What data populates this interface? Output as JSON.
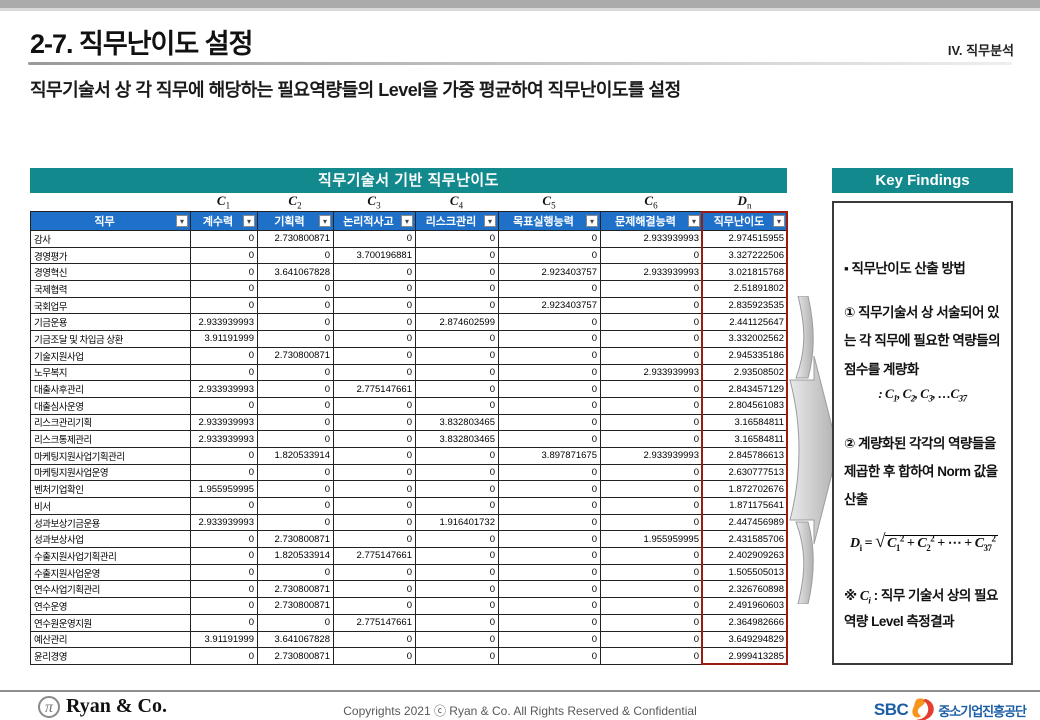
{
  "header": {
    "title": "2-7. 직무난이도 설정",
    "section": "IV. 직무분석",
    "subtitle": "직무기술서 상 각 직무에 해당하는 필요역량들의 Level을 가중 평균하여 직무난이도를 설정"
  },
  "colors": {
    "teal": "#12898d",
    "header_blue": "#1f70c9",
    "highlight_red": "#9b1b10"
  },
  "table": {
    "title": "직무기술서 기반 직무난이도",
    "symbols": [
      {
        "base": "C",
        "sub": "1"
      },
      {
        "base": "C",
        "sub": "2"
      },
      {
        "base": "C",
        "sub": "3"
      },
      {
        "base": "C",
        "sub": "4"
      },
      {
        "base": "C",
        "sub": "5"
      },
      {
        "base": "C",
        "sub": "6"
      },
      {
        "base": "D",
        "sub": "n"
      }
    ],
    "columns": [
      "직무",
      "계수력",
      "기획력",
      "논리적사고",
      "리스크관리",
      "목표실행능력",
      "문제해결능력",
      "직무난이도"
    ],
    "rows": [
      {
        "label": "감사",
        "values": [
          "0",
          "2.730800871",
          "0",
          "0",
          "0",
          "2.933939993",
          "2.974515955"
        ]
      },
      {
        "label": "경영평가",
        "values": [
          "0",
          "0",
          "3.700196881",
          "0",
          "0",
          "0",
          "3.327222506"
        ]
      },
      {
        "label": "경영혁신",
        "values": [
          "0",
          "3.641067828",
          "0",
          "0",
          "2.923403757",
          "2.933939993",
          "3.021815768"
        ]
      },
      {
        "label": "국제협력",
        "values": [
          "0",
          "0",
          "0",
          "0",
          "0",
          "0",
          "2.51891802"
        ]
      },
      {
        "label": "국회업무",
        "values": [
          "0",
          "0",
          "0",
          "0",
          "2.923403757",
          "0",
          "2.835923535"
        ]
      },
      {
        "label": "기금운용",
        "values": [
          "2.933939993",
          "0",
          "0",
          "2.874602599",
          "0",
          "0",
          "2.441125647"
        ]
      },
      {
        "label": "기금조달 및 차입금 상환",
        "values": [
          "3.91191999",
          "0",
          "0",
          "0",
          "0",
          "0",
          "3.332002562"
        ]
      },
      {
        "label": "기술지원사업",
        "values": [
          "0",
          "2.730800871",
          "0",
          "0",
          "0",
          "0",
          "2.945335186"
        ]
      },
      {
        "label": "노무복지",
        "values": [
          "0",
          "0",
          "0",
          "0",
          "0",
          "2.933939993",
          "2.93508502"
        ]
      },
      {
        "label": "대출사후관리",
        "values": [
          "2.933939993",
          "0",
          "2.775147661",
          "0",
          "0",
          "0",
          "2.843457129"
        ]
      },
      {
        "label": "대출심사운영",
        "values": [
          "0",
          "0",
          "0",
          "0",
          "0",
          "0",
          "2.804561083"
        ]
      },
      {
        "label": "리스크관리기획",
        "values": [
          "2.933939993",
          "0",
          "0",
          "3.832803465",
          "0",
          "0",
          "3.16584811"
        ]
      },
      {
        "label": "리스크통제관리",
        "values": [
          "2.933939993",
          "0",
          "0",
          "3.832803465",
          "0",
          "0",
          "3.16584811"
        ]
      },
      {
        "label": "마케팅지원사업기획관리",
        "values": [
          "0",
          "1.820533914",
          "0",
          "0",
          "3.897871675",
          "2.933939993",
          "2.845786613"
        ]
      },
      {
        "label": "마케팅지원사업운영",
        "values": [
          "0",
          "0",
          "0",
          "0",
          "0",
          "0",
          "2.630777513"
        ]
      },
      {
        "label": "벤처기업확인",
        "values": [
          "1.955959995",
          "0",
          "0",
          "0",
          "0",
          "0",
          "1.872702676"
        ]
      },
      {
        "label": "비서",
        "values": [
          "0",
          "0",
          "0",
          "0",
          "0",
          "0",
          "1.871175641"
        ]
      },
      {
        "label": "성과보상기금운용",
        "values": [
          "2.933939993",
          "0",
          "0",
          "1.916401732",
          "0",
          "0",
          "2.447456989"
        ]
      },
      {
        "label": "성과보상사업",
        "values": [
          "0",
          "2.730800871",
          "0",
          "0",
          "0",
          "1.955959995",
          "2.431585706"
        ]
      },
      {
        "label": "수출지원사업기획관리",
        "values": [
          "0",
          "1.820533914",
          "2.775147661",
          "0",
          "0",
          "0",
          "2.402909263"
        ]
      },
      {
        "label": "수출지원사업운영",
        "values": [
          "0",
          "0",
          "0",
          "0",
          "0",
          "0",
          "1.505505013"
        ]
      },
      {
        "label": "연수사업기획관리",
        "values": [
          "0",
          "2.730800871",
          "0",
          "0",
          "0",
          "0",
          "2.326760898"
        ]
      },
      {
        "label": "연수운영",
        "values": [
          "0",
          "2.730800871",
          "0",
          "0",
          "0",
          "0",
          "2.491960603"
        ]
      },
      {
        "label": "연수원운영지원",
        "values": [
          "0",
          "0",
          "2.775147661",
          "0",
          "0",
          "0",
          "2.364982666"
        ]
      },
      {
        "label": "예산관리",
        "values": [
          "3.91191999",
          "3.641067828",
          "0",
          "0",
          "0",
          "0",
          "3.649294829"
        ]
      },
      {
        "label": "윤리경영",
        "values": [
          "0",
          "2.730800871",
          "0",
          "0",
          "0",
          "0",
          "2.999413285"
        ]
      }
    ]
  },
  "key_findings": {
    "title": "Key Findings",
    "bullet": "▪ 직무난이도 산출 방법",
    "step1": "① 직무기술서 상 서술되어 있는 각 직무에 필요한 역량들의 점수를 계량화",
    "c_range": {
      "prefix": ": ",
      "items": [
        {
          "base": "C",
          "sub": "1"
        },
        {
          "base": "C",
          "sub": "2"
        },
        {
          "base": "C",
          "sub": "3"
        },
        {
          "base": "…C",
          "sub": "37"
        }
      ]
    },
    "step2": "② 계량화된 각각의 역량들을 제곱한 후 합하여 Norm 값을 산출",
    "formula": {
      "lhs_base": "D",
      "lhs_sub": "i",
      "eq": " = ",
      "terms": [
        {
          "b": "C",
          "sub": "1",
          "sup": "2"
        },
        {
          "b": "C",
          "sub": "2",
          "sup": "2"
        },
        {
          "b": "⋯"
        },
        {
          "b": "C",
          "sub": "37",
          "sup": "2"
        }
      ]
    },
    "note_prefix": "※ ",
    "note_symbol_base": "C",
    "note_symbol_sub": "i",
    "note_text": " : 직무 기술서 상의 필요역량 Level 측정결과"
  },
  "footer": {
    "logo_pi": "π",
    "logo_text": "Ryan & Co.",
    "copyright": "Copyrights 2021 ⓒ Ryan & Co. All Rights Reserved & Confidential",
    "sbc_text": "SBC",
    "sbc_kor": "중소기업진흥공단"
  }
}
